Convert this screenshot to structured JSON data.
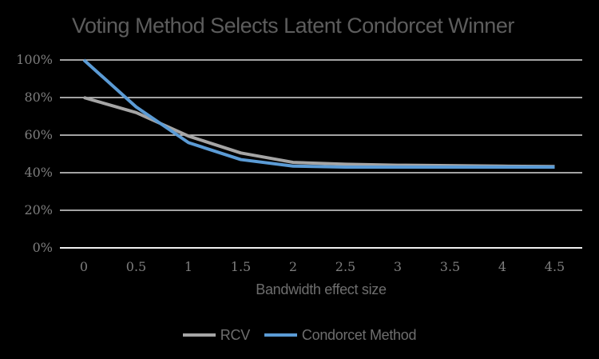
{
  "title": "Voting Method Selects Latent Condorcet Winner",
  "colors": {
    "background": "#000000",
    "title_text": "#5d5d5d",
    "tick_text": "#7d7d7d",
    "gridline": "#d9d9d9",
    "axis_line": "#efefef",
    "axis_title_text": "#6e6e6e",
    "legend_text": "#6e6e6e",
    "rcv_line": "#a5a5a5",
    "condorcet_line": "#5b9bd5"
  },
  "chart_data": {
    "type": "line",
    "title": "Voting Method Selects Latent Condorcet Winner",
    "xlabel": "Bandwidth effect size",
    "ylabel": "",
    "x": [
      0,
      0.5,
      1,
      1.5,
      2,
      2.5,
      3,
      3.5,
      4,
      4.5
    ],
    "x_tick_labels": [
      "0",
      "0.5",
      "1",
      "1.5",
      "2",
      "2.5",
      "3",
      "3.5",
      "4",
      "4.5"
    ],
    "y_ticks": [
      0,
      20,
      40,
      60,
      80,
      100
    ],
    "y_tick_labels": [
      "0%",
      "20%",
      "40%",
      "60%",
      "80%",
      "100%"
    ],
    "ylim": [
      0,
      100
    ],
    "xlim": [
      0,
      4.5
    ],
    "grid": true,
    "legend_position": "bottom",
    "series": [
      {
        "name": "RCV",
        "color": "#a5a5a5",
        "values": [
          80,
          72,
          59.5,
          50.5,
          45.5,
          44.5,
          44,
          43.8,
          43.5,
          43.3
        ]
      },
      {
        "name": "Condorcet Method",
        "color": "#5b9bd5",
        "values": [
          100,
          75,
          56,
          47,
          43.5,
          43,
          43,
          43,
          43,
          43
        ]
      }
    ]
  }
}
